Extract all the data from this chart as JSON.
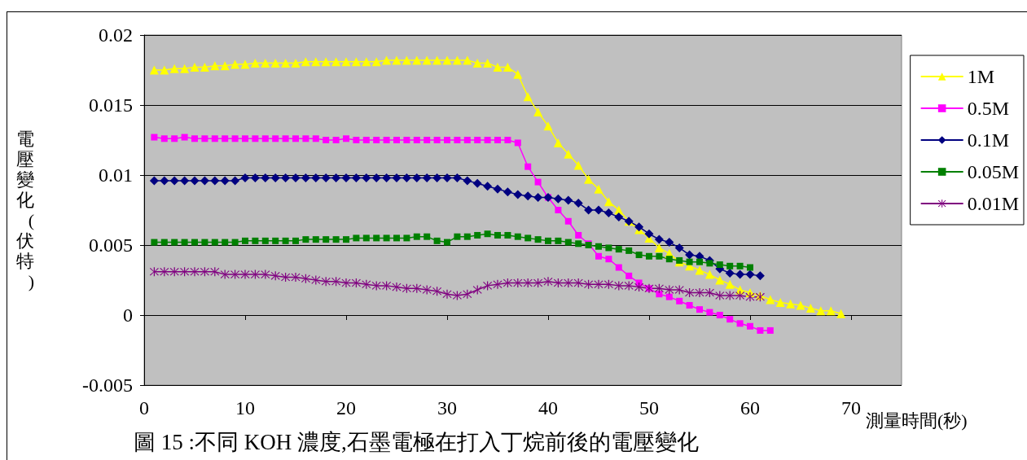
{
  "chart_data": {
    "type": "line",
    "title": "圖 15 :不同 KOH 濃度,石墨電極在打入丁烷前後的電壓變化",
    "xlabel": "測量時間(秒)",
    "ylabel": "電壓變化(伏特)",
    "xlim": [
      0,
      75
    ],
    "xticks": [
      0,
      10,
      20,
      30,
      40,
      50,
      60,
      70
    ],
    "ylim": [
      -0.005,
      0.02
    ],
    "yticks": [
      -0.005,
      0,
      0.005,
      0.01,
      0.015,
      0.02
    ],
    "grid": "y",
    "legend": "right",
    "x": [
      1,
      2,
      3,
      4,
      5,
      6,
      7,
      8,
      9,
      10,
      11,
      12,
      13,
      14,
      15,
      16,
      17,
      18,
      19,
      20,
      21,
      22,
      23,
      24,
      25,
      26,
      27,
      28,
      29,
      30,
      31,
      32,
      33,
      34,
      35,
      36,
      37,
      38,
      39,
      40,
      41,
      42,
      43,
      44,
      45,
      46,
      47,
      48,
      49,
      50,
      51,
      52,
      53,
      54,
      55,
      56,
      57,
      58,
      59,
      60,
      61,
      62,
      63,
      64,
      65,
      66,
      67,
      68,
      69
    ],
    "series": [
      {
        "name": "1M",
        "color": "#ffff00",
        "marker": "triangle",
        "values": [
          0.0175,
          0.0175,
          0.0176,
          0.0176,
          0.0177,
          0.0177,
          0.0178,
          0.0178,
          0.0179,
          0.0179,
          0.018,
          0.018,
          0.018,
          0.018,
          0.018,
          0.0181,
          0.0181,
          0.0181,
          0.0181,
          0.0181,
          0.0181,
          0.0181,
          0.0181,
          0.0182,
          0.0182,
          0.0182,
          0.0182,
          0.0182,
          0.0182,
          0.0182,
          0.0182,
          0.0182,
          0.018,
          0.018,
          0.0177,
          0.0177,
          0.0172,
          0.0156,
          0.0145,
          0.0135,
          0.0123,
          0.0115,
          0.0107,
          0.0097,
          0.009,
          0.0081,
          0.0075,
          0.0067,
          0.0061,
          0.0055,
          0.0048,
          0.0044,
          0.0038,
          0.0035,
          0.0032,
          0.0029,
          0.0025,
          0.0022,
          0.0018,
          0.0016,
          0.0014,
          0.0011,
          0.0009,
          0.0008,
          0.0007,
          0.0005,
          0.0003,
          0.0003,
          0.0001
        ]
      },
      {
        "name": "0.5M",
        "color": "#ff00ff",
        "marker": "square",
        "x": [
          1,
          2,
          3,
          4,
          5,
          6,
          7,
          8,
          9,
          10,
          11,
          12,
          13,
          14,
          15,
          16,
          17,
          18,
          19,
          20,
          21,
          22,
          23,
          24,
          25,
          26,
          27,
          28,
          29,
          30,
          31,
          32,
          33,
          34,
          35,
          36,
          37,
          38,
          39,
          40,
          41,
          42,
          43,
          44,
          45,
          46,
          47,
          48,
          49,
          50,
          51,
          52,
          53,
          54,
          55,
          56,
          57,
          58,
          59,
          60,
          61,
          62
        ],
        "values": [
          0.0127,
          0.0126,
          0.0126,
          0.0127,
          0.0126,
          0.0126,
          0.0126,
          0.0126,
          0.0126,
          0.0126,
          0.0126,
          0.0126,
          0.0126,
          0.0126,
          0.0126,
          0.0126,
          0.0126,
          0.0125,
          0.0125,
          0.0126,
          0.0125,
          0.0125,
          0.0125,
          0.0125,
          0.0125,
          0.0125,
          0.0125,
          0.0125,
          0.0125,
          0.0125,
          0.0125,
          0.0125,
          0.0125,
          0.0125,
          0.0125,
          0.0125,
          0.0123,
          0.0106,
          0.0095,
          0.0084,
          0.0075,
          0.0067,
          0.0057,
          0.0051,
          0.0042,
          0.004,
          0.0034,
          0.0028,
          0.0023,
          0.0019,
          0.0015,
          0.0013,
          0.001,
          0.0007,
          0.0004,
          0.0002,
          0,
          -0.0003,
          -0.0006,
          -0.0008,
          -0.0011,
          -0.0011
        ]
      },
      {
        "name": "0.1M",
        "color": "#000080",
        "marker": "diamond",
        "x": [
          1,
          2,
          3,
          4,
          5,
          6,
          7,
          8,
          9,
          10,
          11,
          12,
          13,
          14,
          15,
          16,
          17,
          18,
          19,
          20,
          21,
          22,
          23,
          24,
          25,
          26,
          27,
          28,
          29,
          30,
          31,
          32,
          33,
          34,
          35,
          36,
          37,
          38,
          39,
          40,
          41,
          42,
          43,
          44,
          45,
          46,
          47,
          48,
          49,
          50,
          51,
          52,
          53,
          54,
          55,
          56,
          57,
          58,
          59,
          60,
          61
        ],
        "values": [
          0.0096,
          0.0096,
          0.0096,
          0.0096,
          0.0096,
          0.0096,
          0.0096,
          0.0096,
          0.0096,
          0.0098,
          0.0098,
          0.0098,
          0.0098,
          0.0098,
          0.0098,
          0.0098,
          0.0098,
          0.0098,
          0.0098,
          0.0098,
          0.0098,
          0.0098,
          0.0098,
          0.0098,
          0.0098,
          0.0098,
          0.0098,
          0.0098,
          0.0098,
          0.0098,
          0.0098,
          0.0096,
          0.0094,
          0.0092,
          0.009,
          0.0088,
          0.0086,
          0.0085,
          0.0084,
          0.0084,
          0.0083,
          0.0082,
          0.008,
          0.0075,
          0.0075,
          0.0073,
          0.007,
          0.0067,
          0.0063,
          0.0058,
          0.0054,
          0.0052,
          0.0048,
          0.0043,
          0.0042,
          0.0039,
          0.0033,
          0.003,
          0.0029,
          0.0029,
          0.0028
        ]
      },
      {
        "name": "0.05M",
        "color": "#008000",
        "marker": "square",
        "x": [
          1,
          2,
          3,
          4,
          5,
          6,
          7,
          8,
          9,
          10,
          11,
          12,
          13,
          14,
          15,
          16,
          17,
          18,
          19,
          20,
          21,
          22,
          23,
          24,
          25,
          26,
          27,
          28,
          29,
          30,
          31,
          32,
          33,
          34,
          35,
          36,
          37,
          38,
          39,
          40,
          41,
          42,
          43,
          44,
          45,
          46,
          47,
          48,
          49,
          50,
          51,
          52,
          53,
          54,
          55,
          56,
          57,
          58,
          59,
          60
        ],
        "values": [
          0.0052,
          0.0052,
          0.0052,
          0.0052,
          0.0052,
          0.0052,
          0.0052,
          0.0052,
          0.0052,
          0.0053,
          0.0053,
          0.0053,
          0.0053,
          0.0053,
          0.0053,
          0.0054,
          0.0054,
          0.0054,
          0.0054,
          0.0054,
          0.0055,
          0.0055,
          0.0055,
          0.0055,
          0.0055,
          0.0055,
          0.0056,
          0.0056,
          0.0053,
          0.0052,
          0.0056,
          0.0056,
          0.0057,
          0.0058,
          0.0057,
          0.0057,
          0.0056,
          0.0055,
          0.0054,
          0.0053,
          0.0053,
          0.0052,
          0.0051,
          0.005,
          0.0049,
          0.0048,
          0.0047,
          0.0046,
          0.0043,
          0.0042,
          0.0042,
          0.004,
          0.0039,
          0.0038,
          0.0038,
          0.0037,
          0.0036,
          0.0035,
          0.0035,
          0.0034
        ]
      },
      {
        "name": "0.01M",
        "color": "#800080",
        "marker": "cross",
        "x": [
          1,
          2,
          3,
          4,
          5,
          6,
          7,
          8,
          9,
          10,
          11,
          12,
          13,
          14,
          15,
          16,
          17,
          18,
          19,
          20,
          21,
          22,
          23,
          24,
          25,
          26,
          27,
          28,
          29,
          30,
          31,
          32,
          33,
          34,
          35,
          36,
          37,
          38,
          39,
          40,
          41,
          42,
          43,
          44,
          45,
          46,
          47,
          48,
          49,
          50,
          51,
          52,
          53,
          54,
          55,
          56,
          57,
          58,
          59,
          60,
          61
        ],
        "values": [
          0.0031,
          0.0031,
          0.0031,
          0.0031,
          0.0031,
          0.0031,
          0.0031,
          0.0029,
          0.0029,
          0.0029,
          0.0029,
          0.0029,
          0.0028,
          0.0027,
          0.0027,
          0.0026,
          0.0025,
          0.0024,
          0.0024,
          0.0023,
          0.0023,
          0.0022,
          0.0021,
          0.0021,
          0.002,
          0.0019,
          0.0019,
          0.0018,
          0.0017,
          0.0015,
          0.0014,
          0.0015,
          0.0018,
          0.0021,
          0.0022,
          0.0023,
          0.0023,
          0.0023,
          0.0023,
          0.0024,
          0.0023,
          0.0023,
          0.0023,
          0.0022,
          0.0022,
          0.0022,
          0.0021,
          0.0021,
          0.002,
          0.0019,
          0.0019,
          0.0018,
          0.0018,
          0.0016,
          0.0016,
          0.0016,
          0.0014,
          0.0014,
          0.0014,
          0.0013,
          0.0013
        ]
      }
    ]
  }
}
